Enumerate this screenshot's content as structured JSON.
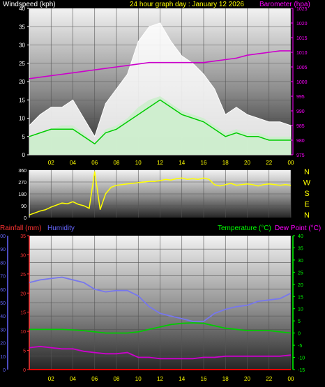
{
  "header": {
    "left": "Windspeed (kph)",
    "center": "24 hour graph day : January 12 2026",
    "right": "Barometer (hpa)"
  },
  "panel3_header": {
    "rainfall": "Rainfall (mm)",
    "humidity": "Humidity",
    "temperature": "Temperature (°C)",
    "dewpoint": "Dew Point (°C)"
  },
  "compass_letters": [
    "N",
    "W",
    "S",
    "E",
    "N"
  ],
  "colors": {
    "gust": "#ffffff",
    "avg": "#cceecc",
    "avg_line": "#00cc00",
    "barometer": "#cc00cc",
    "direction": "#ffff00",
    "humidity": "#7777ee",
    "temperature": "#00cc00",
    "dewpoint": "#cc00cc",
    "rainfall": "#ff0000",
    "windspeed_axis": "#ffffff",
    "baro_axis": "#ff00ff",
    "direction_axis": "#ffffff",
    "rain_axis": "#ff3333",
    "humidity_axis": "#6666ff",
    "temp_axis": "#00ff00",
    "hour_labels": "#ffff00"
  },
  "chart_data": [
    {
      "type": "area",
      "name": "wind-and-barometer",
      "x_ticks": [
        "02",
        "04",
        "06",
        "08",
        "10",
        "12",
        "14",
        "16",
        "18",
        "20",
        "22",
        "00"
      ],
      "x_hours": [
        2,
        4,
        6,
        8,
        10,
        12,
        14,
        16,
        18,
        20,
        22,
        24
      ],
      "xlim_hours": [
        0,
        24
      ],
      "ylabel_left": "Windspeed (kph)",
      "ylabel_right": "Barometer (hpa)",
      "ylim_left": [
        0,
        40
      ],
      "yticks_left": [
        "0",
        "5",
        "10",
        "15",
        "20",
        "25",
        "30",
        "35",
        "40"
      ],
      "ylim_right": [
        975,
        1025
      ],
      "yticks_right": [
        "975",
        "980",
        "985",
        "990",
        "995",
        "1000",
        "1005",
        "1010",
        "1015",
        "1020",
        "1025"
      ],
      "series": [
        {
          "hours": [
            0,
            1,
            2,
            3,
            4,
            5,
            6,
            7,
            8,
            9,
            10,
            11,
            12,
            13,
            14,
            15,
            16,
            17,
            18,
            19,
            20,
            21,
            22,
            23,
            24
          ],
          "values": [
            8,
            11,
            13,
            13,
            15,
            10,
            5,
            14,
            18,
            22,
            31,
            35,
            36,
            31,
            27,
            25,
            22,
            18,
            11,
            13,
            11,
            10,
            9,
            9,
            8
          ]
        },
        {
          "hours": [
            0,
            1,
            2,
            3,
            4,
            5,
            6,
            7,
            8,
            9,
            10,
            11,
            12,
            13,
            14,
            15,
            16,
            17,
            18,
            19,
            20,
            21,
            22,
            23,
            24
          ],
          "values": [
            5,
            6,
            7,
            8,
            8,
            6,
            3,
            7,
            8,
            10,
            13,
            15,
            16,
            14,
            12,
            11,
            10,
            8,
            6,
            7,
            6,
            6,
            5,
            5,
            5
          ]
        },
        {
          "hours": [
            0,
            1,
            2,
            3,
            4,
            5,
            6,
            7,
            8,
            9,
            10,
            11,
            12,
            13,
            14,
            15,
            16,
            17,
            18,
            19,
            20,
            21,
            22,
            23,
            24
          ],
          "values": [
            5,
            6,
            7,
            7,
            7,
            5,
            3,
            6,
            7,
            9,
            11,
            13,
            15,
            13,
            11,
            10,
            9,
            7,
            5,
            6,
            5,
            5,
            4,
            4,
            4
          ]
        },
        {
          "hours": [
            0,
            1,
            2,
            3,
            4,
            5,
            6,
            7,
            8,
            9,
            10,
            11,
            12,
            13,
            14,
            15,
            16,
            17,
            18,
            19,
            20,
            21,
            22,
            23,
            24
          ],
          "values": [
            1001,
            1001.5,
            1002,
            1002.5,
            1003,
            1003.5,
            1004,
            1004.5,
            1005,
            1005.5,
            1006,
            1006.5,
            1006.5,
            1006.5,
            1006.5,
            1006.5,
            1006.5,
            1007,
            1007.5,
            1008,
            1009,
            1009.5,
            1010,
            1010.5,
            1010.5
          ]
        }
      ]
    },
    {
      "type": "line",
      "name": "wind-direction",
      "xlim_hours": [
        0,
        24
      ],
      "ylim": [
        0,
        360
      ],
      "yticks": [
        "0",
        "90",
        "180",
        "270",
        "360"
      ],
      "series": [
        {
          "hours": [
            0,
            0.5,
            1,
            1.5,
            2,
            2.5,
            3,
            3.5,
            4,
            4.5,
            5,
            5.5,
            6,
            6.5,
            7,
            7.5,
            8,
            8.5,
            9,
            9.5,
            10,
            10.5,
            11,
            11.5,
            12,
            12.5,
            13,
            13.5,
            14,
            14.5,
            15,
            15.5,
            16,
            16.5,
            17,
            17.5,
            18,
            18.5,
            19,
            19.5,
            20,
            20.5,
            21,
            21.5,
            22,
            22.5,
            23,
            23.5,
            24
          ],
          "values": [
            20,
            35,
            50,
            60,
            80,
            95,
            110,
            105,
            120,
            100,
            90,
            70,
            350,
            60,
            180,
            230,
            245,
            250,
            255,
            260,
            265,
            270,
            275,
            275,
            280,
            290,
            285,
            295,
            300,
            290,
            295,
            290,
            300,
            290,
            250,
            240,
            250,
            260,
            245,
            250,
            255,
            250,
            240,
            250,
            255,
            250,
            245,
            250,
            245
          ]
        }
      ]
    },
    {
      "type": "line",
      "name": "rain-humidity-temperature",
      "x_ticks": [
        "02",
        "04",
        "06",
        "08",
        "10",
        "12",
        "14",
        "16",
        "18",
        "20",
        "22",
        "00"
      ],
      "xlim_hours": [
        0,
        24
      ],
      "ylim_humidity": [
        0,
        100
      ],
      "yticks_humidity": [
        "0",
        "10",
        "20",
        "30",
        "40",
        "50",
        "60",
        "70",
        "80",
        "90",
        "100"
      ],
      "ylim_rain": [
        0,
        35
      ],
      "yticks_rain": [
        "0",
        "5",
        "10",
        "15",
        "20",
        "25",
        "30",
        "35"
      ],
      "ylim_temp": [
        -15,
        40
      ],
      "yticks_temp": [
        "-15",
        "-10",
        "-5",
        "0",
        "5",
        "10",
        "15",
        "20",
        "25",
        "30",
        "35",
        "40"
      ],
      "series": [
        {
          "hours": [
            0,
            1,
            2,
            3,
            4,
            5,
            6,
            7,
            8,
            9,
            10,
            11,
            12,
            13,
            14,
            15,
            16,
            17,
            18,
            19,
            20,
            21,
            22,
            23,
            24
          ],
          "values": [
            65,
            67,
            68,
            69,
            67,
            65,
            60,
            58,
            59,
            59,
            55,
            47,
            42,
            40,
            38,
            36,
            36,
            42,
            45,
            47,
            48,
            51,
            52,
            53,
            57
          ]
        },
        {
          "hours": [
            0,
            1,
            2,
            3,
            4,
            5,
            6,
            7,
            8,
            9,
            10,
            11,
            12,
            13,
            14,
            15,
            16,
            17,
            18,
            19,
            20,
            21,
            22,
            23,
            24
          ],
          "values": [
            1.5,
            1.5,
            1.5,
            1.5,
            1.3,
            1,
            0.5,
            0,
            0,
            0,
            0.5,
            1.5,
            2.5,
            3.5,
            4,
            4.2,
            4,
            3,
            2,
            1.5,
            1,
            1,
            1,
            0.5,
            0
          ]
        },
        {
          "hours": [
            0,
            1,
            2,
            3,
            4,
            5,
            6,
            7,
            8,
            9,
            10,
            11,
            12,
            13,
            14,
            15,
            16,
            17,
            18,
            19,
            20,
            21,
            22,
            23,
            24
          ],
          "values": [
            -6,
            -5.5,
            -6,
            -6.5,
            -6.5,
            -7.5,
            -8,
            -8.5,
            -8.5,
            -8,
            -10,
            -10,
            -10.5,
            -10.5,
            -10.5,
            -10.5,
            -10,
            -10,
            -9.5,
            -9.5,
            -9.5,
            -9.5,
            -9.5,
            -9.5,
            -9
          ]
        },
        {
          "hours": [
            0,
            24
          ],
          "values": [
            0,
            0
          ]
        }
      ]
    }
  ]
}
